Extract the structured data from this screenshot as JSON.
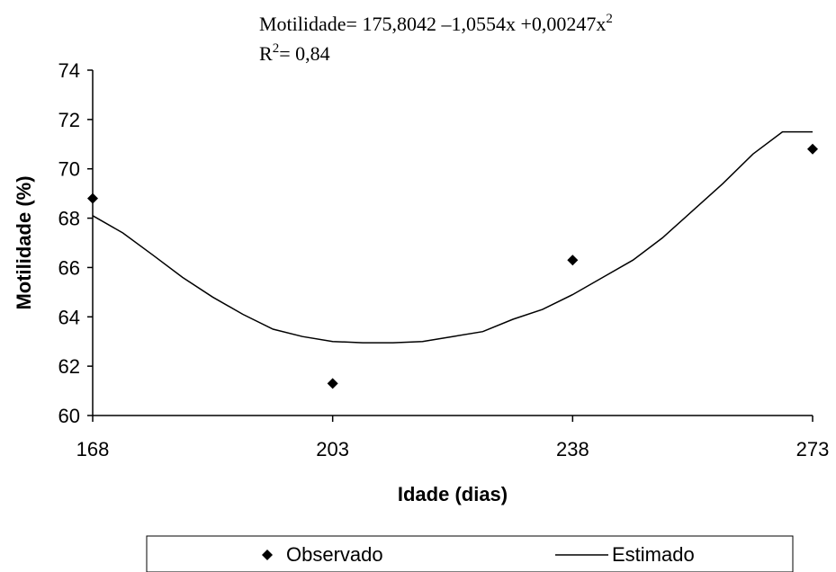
{
  "chart_data": {
    "type": "scatter",
    "xlabel": "Idade (dias)",
    "ylabel": "Motilidade (%)",
    "xlim": [
      168,
      273
    ],
    "ylim": [
      60,
      74
    ],
    "x_ticks": [
      "168",
      "203",
      "238",
      "273"
    ],
    "y_ticks": [
      "60",
      "62",
      "64",
      "66",
      "68",
      "70",
      "72",
      "74"
    ],
    "equation": {
      "main": "Motilidade= 175,8042 –1,0554x +0,00247x",
      "sup": "2",
      "r2_prefix": "R",
      "r2_sup": "2",
      "r2_value": "= 0,84"
    },
    "series": [
      {
        "name": "Observado",
        "kind": "points",
        "marker": "diamond",
        "x": [
          168,
          203,
          238,
          273
        ],
        "y": [
          68.8,
          61.3,
          66.3,
          70.8
        ]
      },
      {
        "name": "Estimado",
        "kind": "line",
        "x": [
          168,
          172.4,
          176.8,
          181.1,
          185.5,
          189.9,
          194.3,
          198.6,
          203,
          207.4,
          211.8,
          216.1,
          220.5,
          224.9,
          229.3,
          233.6,
          238,
          242.4,
          246.8,
          251.1,
          255.5,
          259.9,
          264.3,
          268.6,
          273
        ],
        "y": [
          68.1,
          67.4,
          66.5,
          65.6,
          64.8,
          64.1,
          63.5,
          63.2,
          63.0,
          62.95,
          62.95,
          63.0,
          63.2,
          63.4,
          63.9,
          64.3,
          64.9,
          65.6,
          66.3,
          67.2,
          68.3,
          69.4,
          70.6,
          71.5,
          71.5
        ]
      }
    ],
    "legend": {
      "position": "bottom",
      "items": [
        "Observado",
        "Estimado"
      ]
    },
    "grid": false
  }
}
